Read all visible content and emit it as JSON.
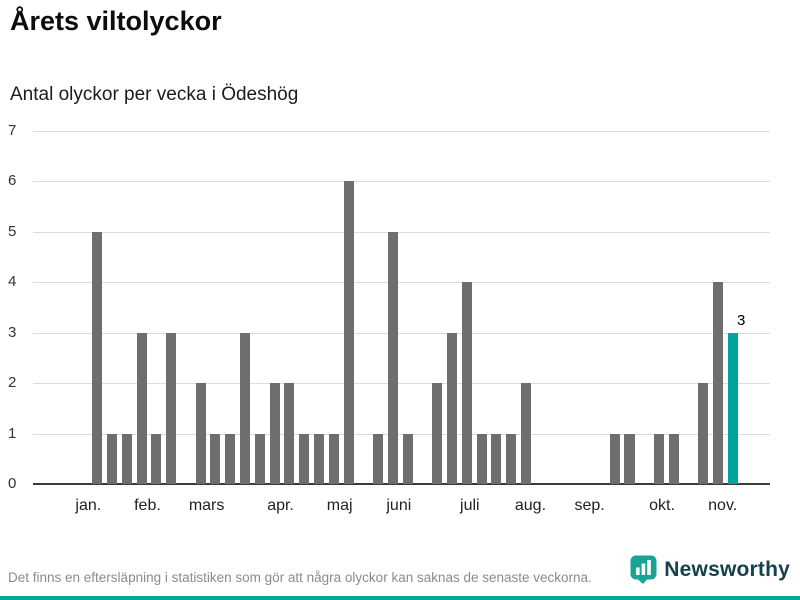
{
  "chart_data": {
    "type": "bar",
    "title": "Årets viltolyckor",
    "subtitle": "Antal olyckor per vecka i Ödeshög",
    "x_unit": "vecka",
    "values": [
      0,
      5,
      1,
      1,
      3,
      1,
      3,
      0,
      2,
      1,
      1,
      3,
      1,
      2,
      2,
      1,
      1,
      1,
      6,
      0,
      1,
      5,
      1,
      0,
      2,
      3,
      4,
      1,
      1,
      1,
      2,
      0,
      0,
      0,
      0,
      0,
      1,
      1,
      0,
      1,
      1,
      0,
      2,
      4,
      3,
      0,
      0
    ],
    "ylim": [
      0,
      7
    ],
    "yticks": [
      0,
      1,
      2,
      3,
      4,
      5,
      6,
      7
    ],
    "xticks": [
      {
        "label": "jan.",
        "pos": 0.4
      },
      {
        "label": "feb.",
        "pos": 4.4
      },
      {
        "label": "mars",
        "pos": 8.4
      },
      {
        "label": "apr.",
        "pos": 13.4
      },
      {
        "label": "maj",
        "pos": 17.4
      },
      {
        "label": "juni",
        "pos": 21.4
      },
      {
        "label": "juli",
        "pos": 26.2
      },
      {
        "label": "aug.",
        "pos": 30.3
      },
      {
        "label": "sep.",
        "pos": 34.3
      },
      {
        "label": "okt.",
        "pos": 39.2
      },
      {
        "label": "nov.",
        "pos": 43.3
      }
    ],
    "grid": true,
    "legend": "none",
    "bar_color": "#6e6e6e",
    "highlight_index": 44,
    "highlight_color": "#00a49d",
    "annotation": {
      "text": "3"
    }
  },
  "footer": {
    "note": "Det finns en eftersläpning i statistiken som gör att några olyckor kan saknas de senaste veckorna.",
    "logo_text": "Newsworthy"
  },
  "colors": {
    "accent": "#00a49d",
    "bar": "#6e6e6e",
    "gridline": "#dcdcdc",
    "axis": "#3c3c3c",
    "footnote_text": "#8b8b8b",
    "logo_text": "#16404e"
  }
}
